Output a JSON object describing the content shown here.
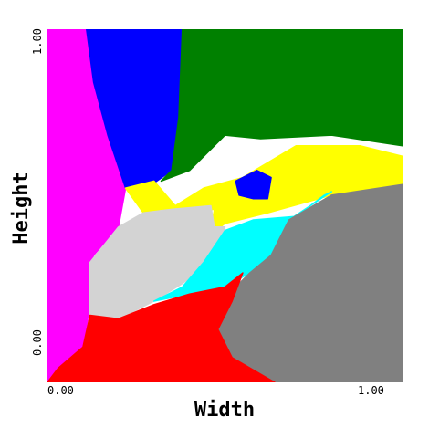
{
  "chart_data": {
    "type": "heatmap",
    "title": "",
    "xlabel": "Width",
    "ylabel": "Height",
    "xlim": [
      0,
      1
    ],
    "ylim": [
      0,
      1
    ],
    "x_ticks": [
      "0.00",
      "1.00"
    ],
    "y_ticks": [
      "0.00",
      "1.00"
    ],
    "grid": false,
    "legend": "none",
    "regions": [
      {
        "color": "#ff00ff",
        "polygon": [
          [
            0.0,
            0.0
          ],
          [
            0.0,
            1.0
          ],
          [
            0.11,
            1.0
          ],
          [
            0.13,
            0.85
          ],
          [
            0.17,
            0.7
          ],
          [
            0.22,
            0.55
          ],
          [
            0.2,
            0.44
          ],
          [
            0.13,
            0.36
          ],
          [
            0.12,
            0.22
          ],
          [
            0.1,
            0.1
          ],
          [
            0.03,
            0.04
          ],
          [
            0.0,
            0.0
          ]
        ]
      },
      {
        "color": "#0000ff",
        "polygon": [
          [
            0.11,
            1.0
          ],
          [
            0.38,
            1.0
          ],
          [
            0.37,
            0.75
          ],
          [
            0.35,
            0.6
          ],
          [
            0.28,
            0.55
          ],
          [
            0.22,
            0.55
          ],
          [
            0.17,
            0.7
          ],
          [
            0.13,
            0.85
          ],
          [
            0.11,
            1.0
          ]
        ]
      },
      {
        "color": "#008000",
        "polygon": [
          [
            0.38,
            1.0
          ],
          [
            1.0,
            1.0
          ],
          [
            1.0,
            0.67
          ],
          [
            0.8,
            0.7
          ],
          [
            0.6,
            0.69
          ],
          [
            0.5,
            0.7
          ],
          [
            0.45,
            0.65
          ],
          [
            0.4,
            0.6
          ],
          [
            0.32,
            0.57
          ],
          [
            0.35,
            0.6
          ],
          [
            0.37,
            0.75
          ],
          [
            0.38,
            1.0
          ]
        ]
      },
      {
        "color": "#ffff00",
        "polygon": [
          [
            0.22,
            0.55
          ],
          [
            0.3,
            0.57
          ],
          [
            0.36,
            0.5
          ],
          [
            0.44,
            0.55
          ],
          [
            0.55,
            0.58
          ],
          [
            0.7,
            0.67
          ],
          [
            0.88,
            0.67
          ],
          [
            1.0,
            0.64
          ],
          [
            1.0,
            0.56
          ],
          [
            0.8,
            0.53
          ],
          [
            0.62,
            0.48
          ],
          [
            0.5,
            0.45
          ],
          [
            0.46,
            0.42
          ],
          [
            0.47,
            0.49
          ],
          [
            0.38,
            0.48
          ],
          [
            0.32,
            0.49
          ],
          [
            0.27,
            0.48
          ],
          [
            0.22,
            0.55
          ]
        ]
      },
      {
        "color": "#0000ff",
        "polygon": [
          [
            0.53,
            0.57
          ],
          [
            0.59,
            0.6
          ],
          [
            0.63,
            0.58
          ],
          [
            0.62,
            0.52
          ],
          [
            0.58,
            0.52
          ],
          [
            0.54,
            0.53
          ],
          [
            0.53,
            0.57
          ]
        ]
      },
      {
        "color": "#d3d3d3",
        "polygon": [
          [
            0.12,
            0.34
          ],
          [
            0.2,
            0.44
          ],
          [
            0.27,
            0.48
          ],
          [
            0.35,
            0.49
          ],
          [
            0.46,
            0.5
          ],
          [
            0.47,
            0.44
          ],
          [
            0.5,
            0.44
          ],
          [
            0.46,
            0.34
          ],
          [
            0.38,
            0.28
          ],
          [
            0.3,
            0.23
          ],
          [
            0.2,
            0.18
          ],
          [
            0.12,
            0.19
          ],
          [
            0.12,
            0.34
          ]
        ]
      },
      {
        "color": "#00ffff",
        "polygon": [
          [
            0.3,
            0.23
          ],
          [
            0.38,
            0.27
          ],
          [
            0.44,
            0.34
          ],
          [
            0.5,
            0.43
          ],
          [
            0.58,
            0.46
          ],
          [
            0.7,
            0.47
          ],
          [
            0.78,
            0.53
          ],
          [
            0.8,
            0.54
          ],
          [
            0.68,
            0.46
          ],
          [
            0.63,
            0.36
          ],
          [
            0.57,
            0.31
          ],
          [
            0.5,
            0.27
          ],
          [
            0.4,
            0.25
          ],
          [
            0.3,
            0.23
          ]
        ]
      },
      {
        "color": "#808080",
        "polygon": [
          [
            1.0,
            0.56
          ],
          [
            1.0,
            0.0
          ],
          [
            0.64,
            0.0
          ],
          [
            0.52,
            0.07
          ],
          [
            0.48,
            0.15
          ],
          [
            0.5,
            0.24
          ],
          [
            0.57,
            0.31
          ],
          [
            0.63,
            0.36
          ],
          [
            0.68,
            0.46
          ],
          [
            0.8,
            0.53
          ],
          [
            1.0,
            0.56
          ]
        ]
      },
      {
        "color": "#ff0000",
        "polygon": [
          [
            0.0,
            0.0
          ],
          [
            0.03,
            0.04
          ],
          [
            0.1,
            0.1
          ],
          [
            0.12,
            0.19
          ],
          [
            0.2,
            0.18
          ],
          [
            0.3,
            0.22
          ],
          [
            0.4,
            0.25
          ],
          [
            0.5,
            0.27
          ],
          [
            0.55,
            0.31
          ],
          [
            0.52,
            0.23
          ],
          [
            0.48,
            0.15
          ],
          [
            0.52,
            0.07
          ],
          [
            0.64,
            0.0
          ],
          [
            0.0,
            0.0
          ]
        ]
      }
    ]
  }
}
